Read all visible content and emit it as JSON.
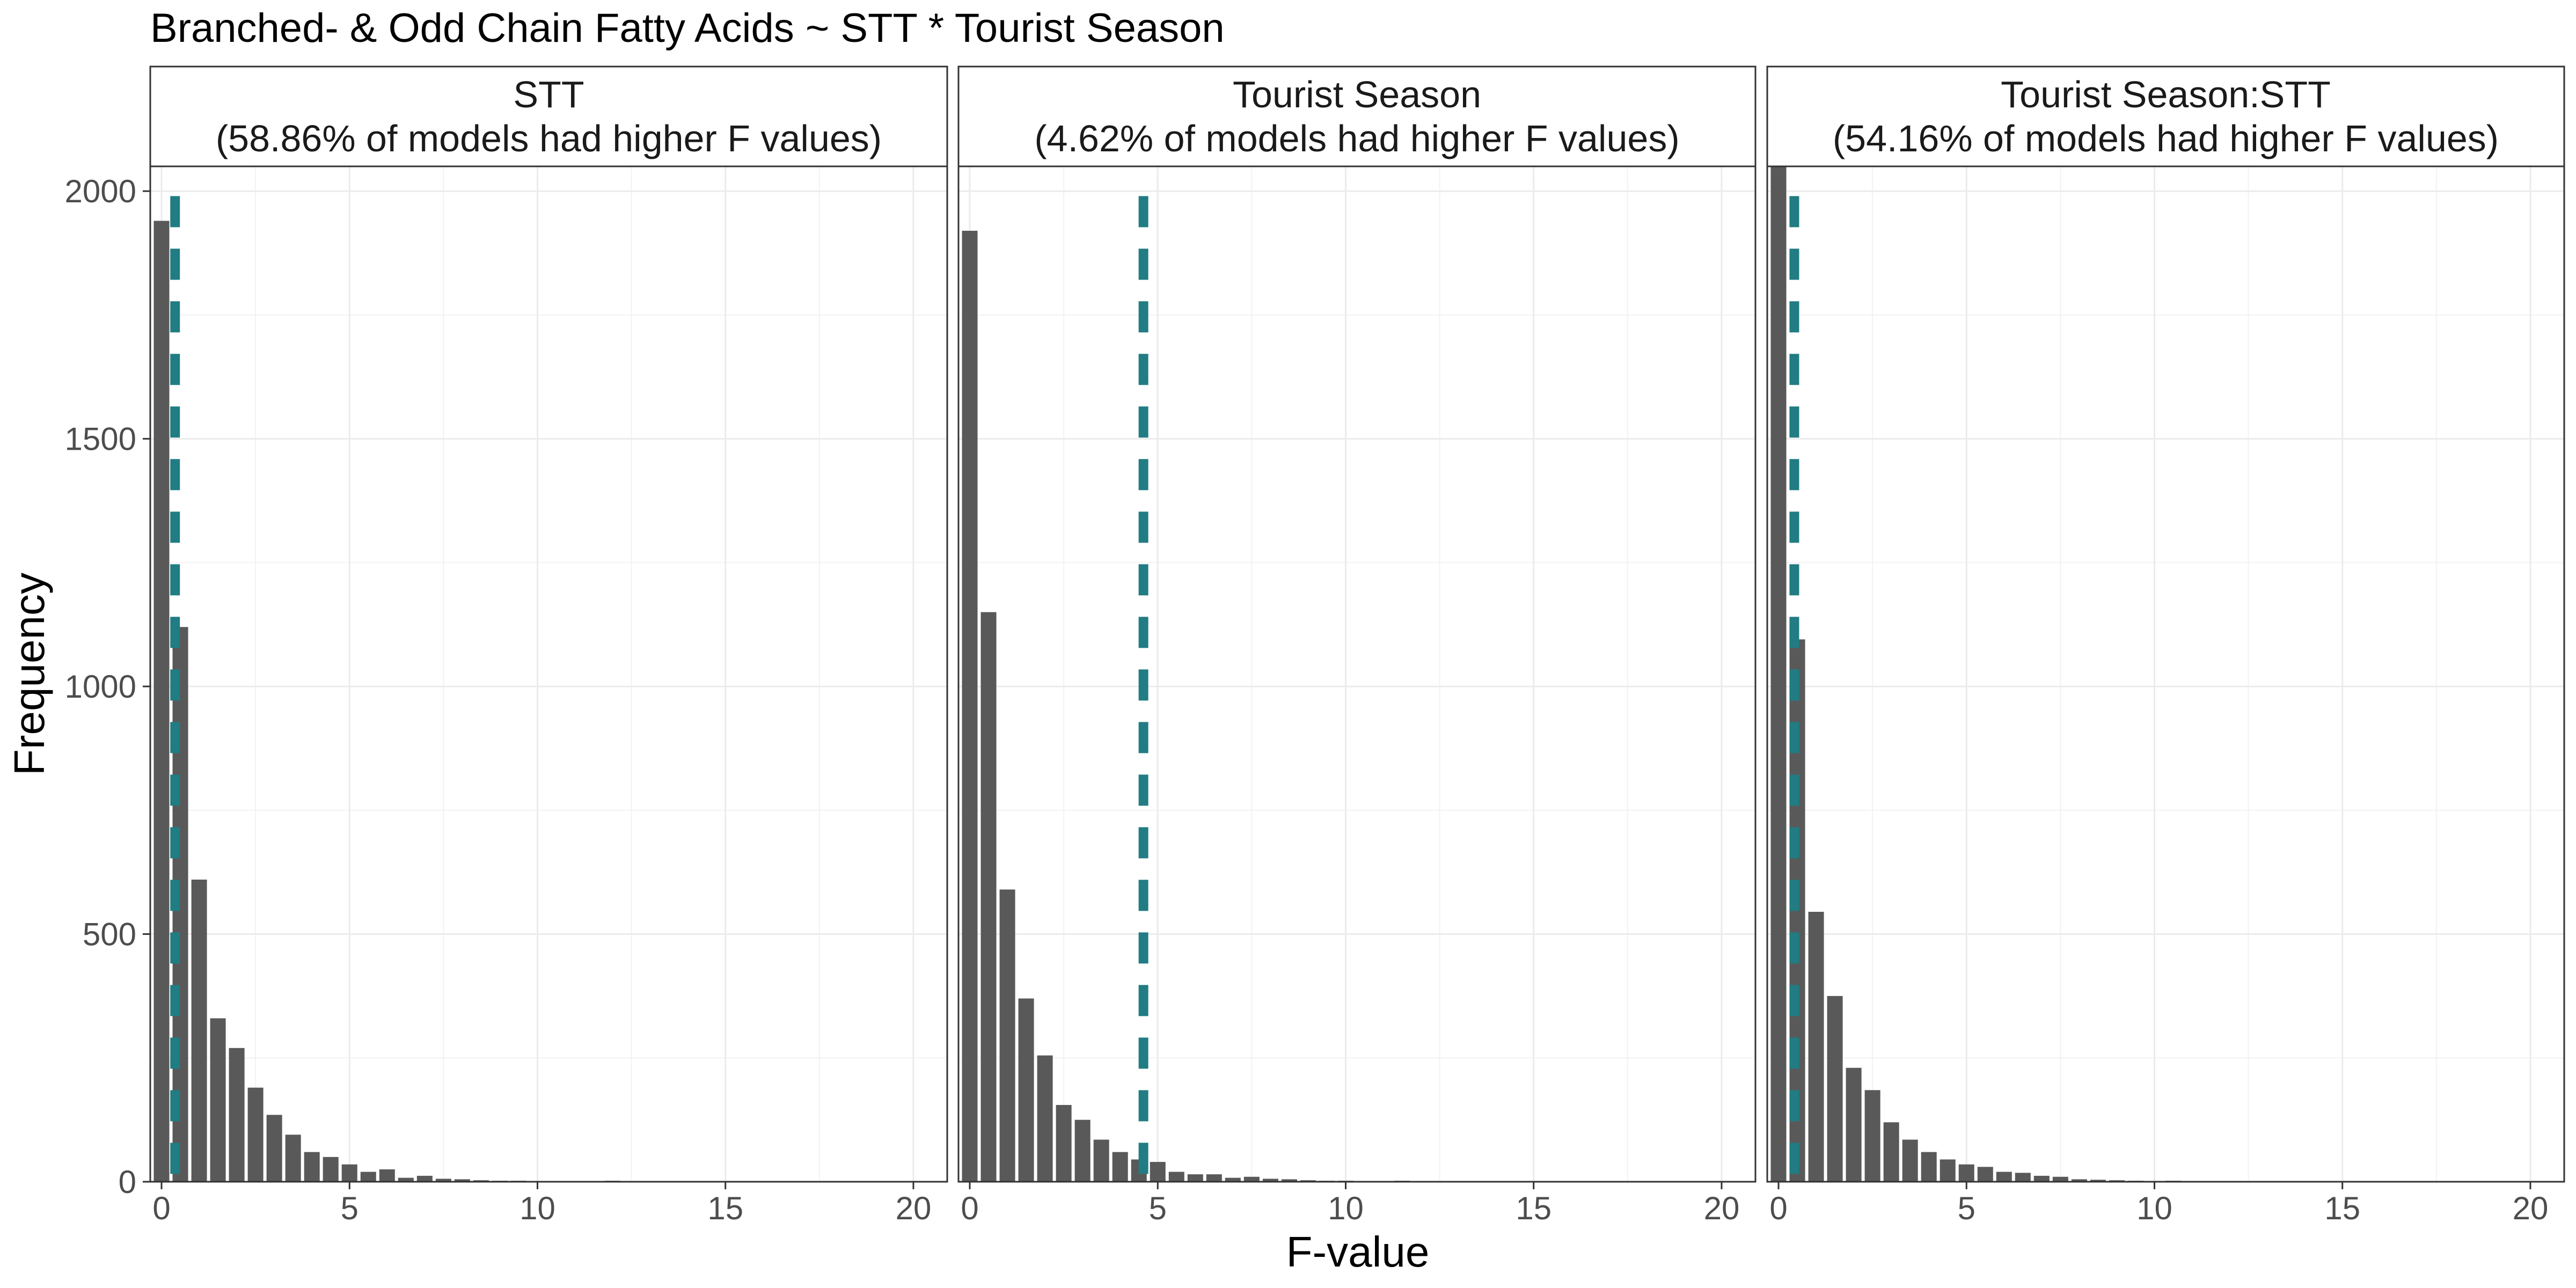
{
  "chart_data": {
    "type": "bar",
    "title": "Branched- & Odd Chain Fatty Acids ~ STT * Tourist Season",
    "xlabel": "F-value",
    "ylabel": "Frequency",
    "xlim": [
      -0.3,
      20.9
    ],
    "ylim": [
      0,
      2050
    ],
    "x_ticks": [
      0,
      5,
      10,
      15,
      20
    ],
    "y_ticks": [
      0,
      500,
      1000,
      1500,
      2000
    ],
    "x_tick_labels": [
      "0",
      "5",
      "10",
      "15",
      "20"
    ],
    "y_tick_labels": [
      "0",
      "500",
      "1000",
      "1500",
      "2000"
    ],
    "bin_width": 0.5,
    "grid": true,
    "bar_color": "#595959",
    "line_color": "#217c83",
    "panels": [
      {
        "strip_line1": "STT",
        "strip_line2": "(58.86% of models had higher F values)",
        "observed_f": 0.36,
        "bins": [
          0,
          0.5,
          1,
          1.5,
          2,
          2.5,
          3,
          3.5,
          4,
          4.5,
          5,
          5.5,
          6,
          6.5,
          7,
          7.5,
          8,
          8.5,
          9,
          9.5,
          10,
          10.5,
          12
        ],
        "counts": [
          1940,
          1120,
          610,
          330,
          270,
          190,
          135,
          95,
          60,
          50,
          35,
          20,
          25,
          8,
          12,
          6,
          5,
          3,
          2,
          2,
          1,
          1,
          2
        ]
      },
      {
        "strip_line1": "Tourist Season",
        "strip_line2": "(4.62% of models had higher F values)",
        "observed_f": 4.62,
        "bins": [
          0,
          0.5,
          1,
          1.5,
          2,
          2.5,
          3,
          3.5,
          4,
          4.5,
          5,
          5.5,
          6,
          6.5,
          7,
          7.5,
          8,
          8.5,
          9,
          9.5,
          10,
          10.5,
          11,
          11.5
        ],
        "counts": [
          1920,
          1150,
          590,
          370,
          255,
          155,
          125,
          85,
          60,
          45,
          40,
          20,
          15,
          15,
          8,
          10,
          6,
          5,
          3,
          2,
          2,
          1,
          1,
          2
        ]
      },
      {
        "strip_line1": "Tourist Season:STT",
        "strip_line2": "(54.16% of models had higher F values)",
        "observed_f": 0.42,
        "bins": [
          0,
          0.5,
          1,
          1.5,
          2,
          2.5,
          3,
          3.5,
          4,
          4.5,
          5,
          5.5,
          6,
          6.5,
          7,
          7.5,
          8,
          8.5,
          9,
          9.5,
          10,
          10.5
        ],
        "counts": [
          2050,
          1095,
          545,
          375,
          230,
          185,
          120,
          85,
          60,
          45,
          35,
          30,
          20,
          18,
          12,
          10,
          5,
          4,
          3,
          2,
          1,
          2
        ]
      }
    ]
  }
}
